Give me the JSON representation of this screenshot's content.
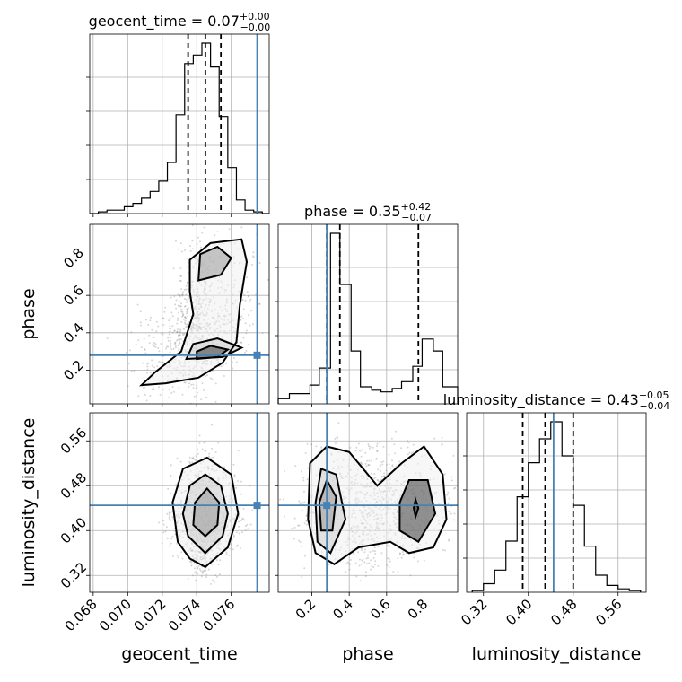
{
  "chart_data": {
    "type": "corner",
    "parameters": [
      "geocent_time",
      "phase",
      "luminosity_distance"
    ],
    "truths": {
      "geocent_time": 0.0775,
      "phase": 0.28,
      "luminosity_distance": 0.445
    },
    "titles": [
      {
        "text": "geocent_time = 0.07",
        "sup": "+0.00",
        "sub": "−0.00"
      },
      {
        "text": "phase = 0.35",
        "sup": "+0.42",
        "sub": "−0.07"
      },
      {
        "text": "luminosity_distance = 0.43",
        "sup": "+0.05",
        "sub": "−0.04"
      }
    ],
    "ranges": {
      "geocent_time": [
        0.0678,
        0.0782
      ],
      "phase": [
        0.02,
        0.98
      ],
      "luminosity_distance": [
        0.29,
        0.61
      ]
    },
    "ticks": {
      "geocent_time": [
        0.068,
        0.07,
        0.072,
        0.074,
        0.076
      ],
      "phase": [
        0.2,
        0.4,
        0.6,
        0.8
      ],
      "luminosity_distance": [
        0.32,
        0.4,
        0.48,
        0.56
      ]
    },
    "tick_labels": {
      "geocent_time": [
        "0.068",
        "0.070",
        "0.072",
        "0.074",
        "0.076"
      ],
      "phase": [
        "0.2",
        "0.4",
        "0.6",
        "0.8"
      ],
      "luminosity_distance": [
        "0.32",
        "0.40",
        "0.48",
        "0.56"
      ]
    },
    "quantiles": {
      "geocent_time": [
        0.0735,
        0.0745,
        0.0754
      ],
      "phase": [
        0.28,
        0.35,
        0.77
      ],
      "luminosity_distance": [
        0.39,
        0.43,
        0.48
      ]
    },
    "histograms": {
      "geocent_time": {
        "edges": [
          0.0678,
          0.0683,
          0.0688,
          0.0693,
          0.0698,
          0.0703,
          0.0708,
          0.0713,
          0.0718,
          0.0723,
          0.0728,
          0.0733,
          0.0738,
          0.0743,
          0.0748,
          0.0753,
          0.0758,
          0.0763,
          0.0768,
          0.0773,
          0.0778,
          0.0782
        ],
        "counts": [
          0.0,
          0.01,
          0.02,
          0.02,
          0.04,
          0.06,
          0.09,
          0.13,
          0.19,
          0.3,
          0.58,
          0.88,
          0.93,
          1.0,
          0.86,
          0.57,
          0.27,
          0.08,
          0.02,
          0.01,
          0.0
        ]
      },
      "phase": {
        "edges": [
          0.02,
          0.08,
          0.13,
          0.19,
          0.24,
          0.3,
          0.35,
          0.41,
          0.46,
          0.52,
          0.57,
          0.63,
          0.68,
          0.74,
          0.79,
          0.85,
          0.9,
          0.98
        ],
        "counts": [
          0.03,
          0.06,
          0.06,
          0.11,
          0.21,
          1.0,
          0.7,
          0.31,
          0.1,
          0.08,
          0.07,
          0.09,
          0.13,
          0.22,
          0.38,
          0.31,
          0.1
        ]
      },
      "luminosity_distance": {
        "edges": [
          0.3,
          0.32,
          0.34,
          0.36,
          0.38,
          0.4,
          0.42,
          0.44,
          0.46,
          0.48,
          0.5,
          0.52,
          0.54,
          0.56,
          0.58,
          0.6
        ],
        "counts": [
          0.01,
          0.05,
          0.13,
          0.3,
          0.56,
          0.76,
          0.9,
          1.0,
          0.8,
          0.51,
          0.27,
          0.1,
          0.04,
          0.02,
          0.01
        ]
      }
    },
    "contours_2d": [
      {
        "x": "geocent_time",
        "y": "phase",
        "levels": [
          [
            [
              0.0722,
              0.13
            ],
            [
              0.0741,
              0.16
            ],
            [
              0.0755,
              0.24
            ],
            [
              0.0763,
              0.35
            ],
            [
              0.0765,
              0.55
            ],
            [
              0.0769,
              0.78
            ],
            [
              0.0766,
              0.9
            ],
            [
              0.0748,
              0.88
            ],
            [
              0.0736,
              0.79
            ],
            [
              0.0736,
              0.62
            ],
            [
              0.0738,
              0.5
            ],
            [
              0.0731,
              0.3
            ],
            [
              0.0716,
              0.19
            ],
            [
              0.0708,
              0.12
            ],
            [
              0.0722,
              0.13
            ]
          ],
          [
            [
              0.0734,
              0.26
            ],
            [
              0.0755,
              0.27
            ],
            [
              0.0766,
              0.32
            ],
            [
              0.0752,
              0.37
            ],
            [
              0.0738,
              0.34
            ],
            [
              0.0734,
              0.26
            ]
          ],
          [
            [
              0.0741,
              0.68
            ],
            [
              0.0754,
              0.71
            ],
            [
              0.076,
              0.8
            ],
            [
              0.0752,
              0.86
            ],
            [
              0.0742,
              0.82
            ],
            [
              0.0741,
              0.68
            ]
          ],
          [
            [
              0.074,
              0.26
            ],
            [
              0.0752,
              0.27
            ],
            [
              0.0758,
              0.31
            ],
            [
              0.0748,
              0.33
            ],
            [
              0.074,
              0.3
            ],
            [
              0.074,
              0.26
            ]
          ]
        ]
      },
      {
        "x": "geocent_time",
        "y": "luminosity_distance",
        "levels": [
          [
            [
              0.0745,
              0.335
            ],
            [
              0.0758,
              0.37
            ],
            [
              0.0764,
              0.43
            ],
            [
              0.076,
              0.5
            ],
            [
              0.0746,
              0.53
            ],
            [
              0.0732,
              0.51
            ],
            [
              0.0726,
              0.45
            ],
            [
              0.0729,
              0.38
            ],
            [
              0.0736,
              0.35
            ],
            [
              0.0745,
              0.335
            ]
          ],
          [
            [
              0.0745,
              0.36
            ],
            [
              0.0755,
              0.39
            ],
            [
              0.0758,
              0.43
            ],
            [
              0.0754,
              0.48
            ],
            [
              0.0745,
              0.5
            ],
            [
              0.0736,
              0.48
            ],
            [
              0.0732,
              0.43
            ],
            [
              0.0735,
              0.39
            ],
            [
              0.0745,
              0.36
            ]
          ],
          [
            [
              0.0745,
              0.39
            ],
            [
              0.0752,
              0.41
            ],
            [
              0.0753,
              0.45
            ],
            [
              0.0746,
              0.475
            ],
            [
              0.0739,
              0.45
            ],
            [
              0.0738,
              0.41
            ],
            [
              0.0745,
              0.39
            ]
          ]
        ]
      },
      {
        "x": "phase",
        "y": "luminosity_distance",
        "levels": [
          [
            [
              0.18,
              0.42
            ],
            [
              0.22,
              0.36
            ],
            [
              0.32,
              0.34
            ],
            [
              0.45,
              0.37
            ],
            [
              0.62,
              0.38
            ],
            [
              0.72,
              0.36
            ],
            [
              0.85,
              0.37
            ],
            [
              0.92,
              0.42
            ],
            [
              0.9,
              0.5
            ],
            [
              0.8,
              0.55
            ],
            [
              0.68,
              0.52
            ],
            [
              0.55,
              0.48
            ],
            [
              0.4,
              0.54
            ],
            [
              0.28,
              0.55
            ],
            [
              0.19,
              0.52
            ],
            [
              0.18,
              0.42
            ]
          ],
          [
            [
              0.23,
              0.38
            ],
            [
              0.3,
              0.36
            ],
            [
              0.38,
              0.42
            ],
            [
              0.33,
              0.5
            ],
            [
              0.25,
              0.51
            ],
            [
              0.22,
              0.45
            ],
            [
              0.23,
              0.38
            ]
          ],
          [
            [
              0.25,
              0.4
            ],
            [
              0.31,
              0.4
            ],
            [
              0.33,
              0.46
            ],
            [
              0.28,
              0.49
            ],
            [
              0.24,
              0.45
            ],
            [
              0.25,
              0.4
            ]
          ],
          [
            [
              0.67,
              0.4
            ],
            [
              0.77,
              0.38
            ],
            [
              0.86,
              0.43
            ],
            [
              0.82,
              0.49
            ],
            [
              0.72,
              0.49
            ],
            [
              0.67,
              0.45
            ],
            [
              0.67,
              0.4
            ]
          ],
          [
            [
              0.755,
              0.425
            ],
            [
              0.77,
              0.44
            ],
            [
              0.755,
              0.455
            ],
            [
              0.745,
              0.44
            ],
            [
              0.755,
              0.425
            ]
          ]
        ]
      }
    ]
  }
}
